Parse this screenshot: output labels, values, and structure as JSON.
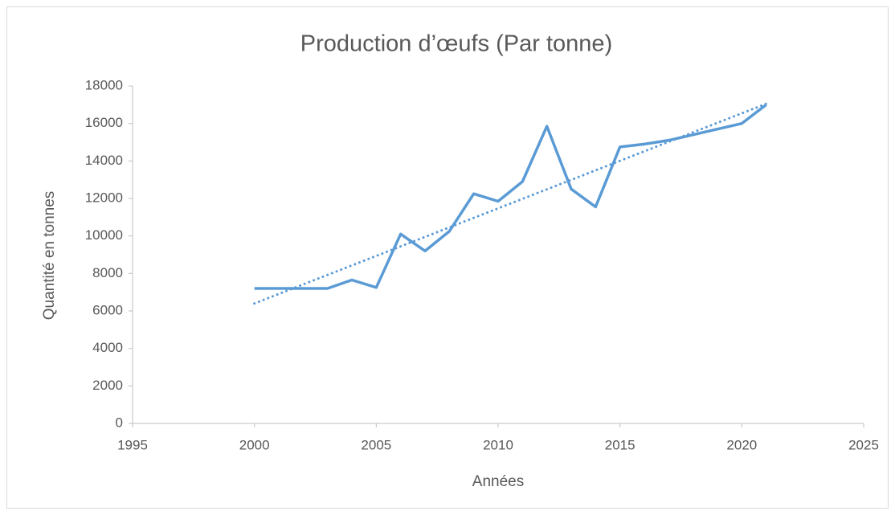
{
  "chart_data": {
    "type": "line",
    "title": "Production d’œufs (Par tonne)",
    "xlabel": "Années",
    "ylabel": "Quantité en tonnes",
    "x": [
      2000,
      2001,
      2002,
      2003,
      2004,
      2005,
      2006,
      2007,
      2008,
      2009,
      2010,
      2011,
      2012,
      2013,
      2014,
      2015,
      2016,
      2017,
      2018,
      2019,
      2020,
      2021
    ],
    "series": [
      {
        "color": "#5b9bd5",
        "values": [
          7200,
          7200,
          7200,
          7200,
          7650,
          7250,
          10100,
          9200,
          10250,
          12250,
          11850,
          12900,
          15850,
          12500,
          11550,
          14750,
          14900,
          15100,
          15400,
          15700,
          16000,
          17000
        ]
      }
    ],
    "trendline": {
      "color": "#5b9bd5",
      "style": "dotted",
      "x": [
        2000,
        2021
      ],
      "values": [
        6400,
        17050
      ]
    },
    "xlim": [
      1995,
      2025
    ],
    "xticks": [
      1995,
      2000,
      2005,
      2010,
      2015,
      2020,
      2025
    ],
    "ylim": [
      0,
      18000
    ],
    "yticks": [
      0,
      2000,
      4000,
      6000,
      8000,
      10000,
      12000,
      14000,
      16000,
      18000
    ],
    "grid": false
  }
}
